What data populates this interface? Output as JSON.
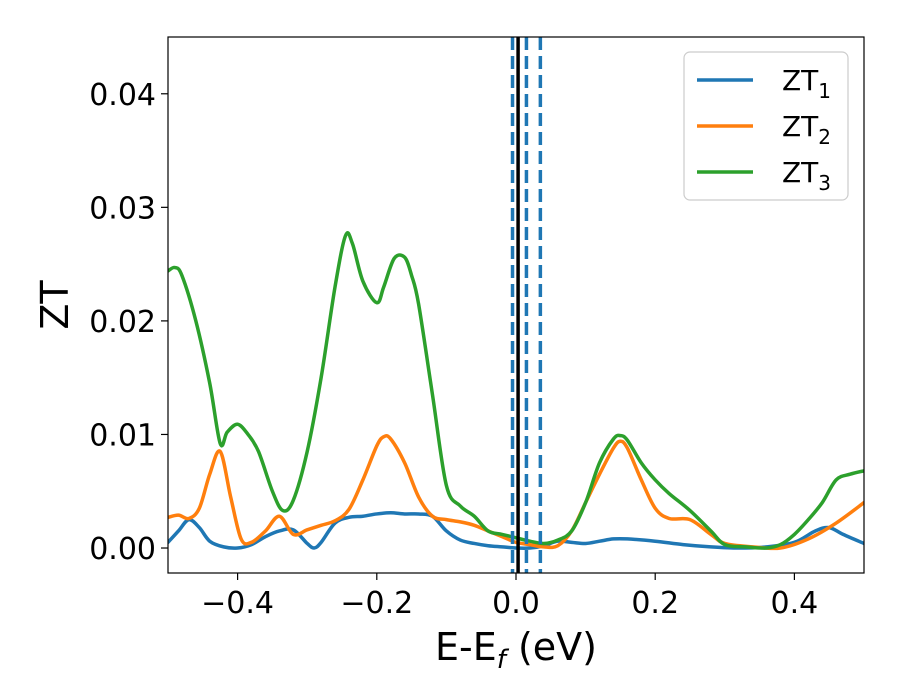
{
  "chart_data": {
    "type": "line",
    "xlabel": "E-E",
    "xlabel_sub": "f",
    "xlabel_unit": "(eV)",
    "ylabel": "ZT",
    "xlim": [
      -0.5,
      0.5
    ],
    "ylim": [
      -0.0022,
      0.045
    ],
    "xticks": [
      -0.4,
      -0.2,
      0.0,
      0.2,
      0.4
    ],
    "xtick_labels": [
      "−0.4",
      "−0.2",
      "0.0",
      "0.2",
      "0.4"
    ],
    "yticks": [
      0.0,
      0.01,
      0.02,
      0.03,
      0.04
    ],
    "ytick_labels": [
      "0.00",
      "0.01",
      "0.02",
      "0.03",
      "0.04"
    ],
    "grid": false,
    "legend_position": "top-right",
    "vertical_lines": [
      {
        "x": -0.005,
        "style": "dashed",
        "color": "#1f77b4"
      },
      {
        "x": 0.015,
        "style": "dashed",
        "color": "#1f77b4"
      },
      {
        "x": 0.035,
        "style": "dashed",
        "color": "#1f77b4"
      },
      {
        "x": 0.003,
        "style": "solid",
        "color": "#000000"
      }
    ],
    "series": [
      {
        "name": "ZT",
        "name_sub": "1",
        "color": "#1f77b4",
        "x": [
          -0.5,
          -0.485,
          -0.47,
          -0.455,
          -0.44,
          -0.42,
          -0.4,
          -0.38,
          -0.36,
          -0.34,
          -0.32,
          -0.3,
          -0.29,
          -0.28,
          -0.26,
          -0.24,
          -0.22,
          -0.2,
          -0.18,
          -0.16,
          -0.14,
          -0.12,
          -0.1,
          -0.08,
          -0.06,
          -0.04,
          -0.02,
          0.0,
          0.02,
          0.04,
          0.06,
          0.08,
          0.1,
          0.12,
          0.14,
          0.16,
          0.2,
          0.24,
          0.28,
          0.32,
          0.36,
          0.4,
          0.43,
          0.45,
          0.47,
          0.5
        ],
        "y": [
          0.0005,
          0.0015,
          0.0025,
          0.0018,
          0.0006,
          0.0001,
          0.0,
          0.0003,
          0.001,
          0.0015,
          0.0016,
          0.0004,
          0.0,
          0.0005,
          0.0022,
          0.0027,
          0.0028,
          0.003,
          0.0031,
          0.003,
          0.003,
          0.0028,
          0.0015,
          0.0007,
          0.0004,
          0.0002,
          0.0001,
          0.0,
          0.0,
          0.0002,
          0.0006,
          0.0005,
          0.0004,
          0.0006,
          0.0008,
          0.0008,
          0.0006,
          0.0003,
          0.0001,
          0.0,
          0.0001,
          0.0005,
          0.0015,
          0.0018,
          0.0012,
          0.0004
        ]
      },
      {
        "name": "ZT",
        "name_sub": "2",
        "color": "#ff7f0e",
        "x": [
          -0.5,
          -0.485,
          -0.47,
          -0.455,
          -0.44,
          -0.425,
          -0.41,
          -0.395,
          -0.38,
          -0.36,
          -0.34,
          -0.32,
          -0.3,
          -0.28,
          -0.26,
          -0.24,
          -0.22,
          -0.2,
          -0.19,
          -0.18,
          -0.16,
          -0.14,
          -0.12,
          -0.1,
          -0.08,
          -0.06,
          -0.04,
          -0.02,
          0.0,
          0.02,
          0.04,
          0.06,
          0.08,
          0.1,
          0.12,
          0.14,
          0.15,
          0.16,
          0.18,
          0.2,
          0.22,
          0.25,
          0.28,
          0.3,
          0.34,
          0.38,
          0.42,
          0.46,
          0.5
        ],
        "y": [
          0.0027,
          0.0029,
          0.0026,
          0.0035,
          0.0065,
          0.0085,
          0.0045,
          0.0008,
          0.0005,
          0.0015,
          0.0028,
          0.0012,
          0.0016,
          0.002,
          0.0024,
          0.0034,
          0.006,
          0.009,
          0.0098,
          0.0096,
          0.0075,
          0.0045,
          0.0028,
          0.0025,
          0.0023,
          0.002,
          0.0015,
          0.001,
          0.0005,
          0.0003,
          0.0001,
          0.0002,
          0.0015,
          0.004,
          0.0065,
          0.0088,
          0.0094,
          0.0088,
          0.006,
          0.0035,
          0.0026,
          0.0025,
          0.0012,
          0.0004,
          0.0001,
          0.0,
          0.0008,
          0.0022,
          0.004
        ]
      },
      {
        "name": "ZT",
        "name_sub": "3",
        "color": "#2ca02c",
        "x": [
          -0.5,
          -0.49,
          -0.48,
          -0.46,
          -0.44,
          -0.425,
          -0.415,
          -0.4,
          -0.385,
          -0.37,
          -0.35,
          -0.335,
          -0.32,
          -0.3,
          -0.28,
          -0.26,
          -0.245,
          -0.235,
          -0.22,
          -0.2,
          -0.19,
          -0.175,
          -0.16,
          -0.15,
          -0.14,
          -0.12,
          -0.1,
          -0.08,
          -0.06,
          -0.04,
          -0.02,
          0.0,
          0.02,
          0.04,
          0.06,
          0.08,
          0.1,
          0.12,
          0.14,
          0.15,
          0.16,
          0.18,
          0.2,
          0.22,
          0.25,
          0.28,
          0.3,
          0.33,
          0.36,
          0.38,
          0.4,
          0.42,
          0.44,
          0.46,
          0.48,
          0.5
        ],
        "y": [
          0.0244,
          0.0247,
          0.024,
          0.02,
          0.0145,
          0.0092,
          0.0102,
          0.0109,
          0.01,
          0.0085,
          0.005,
          0.0033,
          0.0042,
          0.0085,
          0.015,
          0.023,
          0.0275,
          0.0268,
          0.0235,
          0.0216,
          0.023,
          0.0255,
          0.0256,
          0.024,
          0.0215,
          0.0135,
          0.0055,
          0.0037,
          0.0028,
          0.0015,
          0.0012,
          0.0009,
          0.0006,
          0.0004,
          0.0007,
          0.0015,
          0.004,
          0.0075,
          0.0096,
          0.0099,
          0.0095,
          0.0075,
          0.006,
          0.0048,
          0.0033,
          0.0015,
          0.0003,
          0.0001,
          0.0,
          0.0003,
          0.0012,
          0.0025,
          0.004,
          0.006,
          0.0065,
          0.0068
        ]
      }
    ]
  }
}
